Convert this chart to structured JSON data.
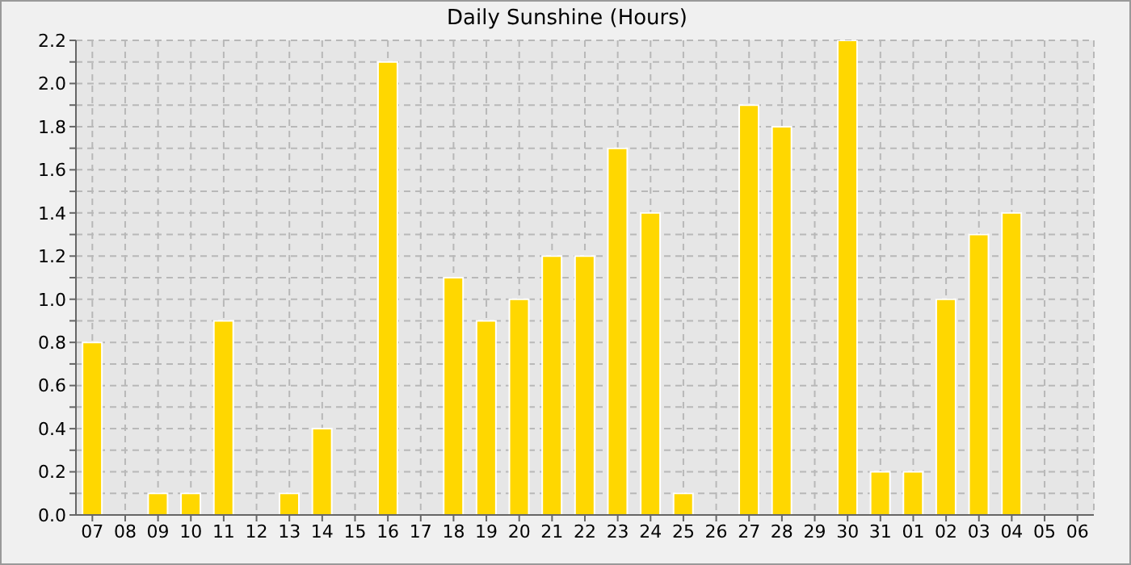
{
  "chart_data": {
    "type": "bar",
    "title": "Daily Sunshine (Hours)",
    "categories": [
      "07",
      "08",
      "09",
      "10",
      "11",
      "12",
      "13",
      "14",
      "15",
      "16",
      "17",
      "18",
      "19",
      "20",
      "21",
      "22",
      "23",
      "24",
      "25",
      "26",
      "27",
      "28",
      "29",
      "30",
      "31",
      "01",
      "02",
      "03",
      "04",
      "05",
      "06"
    ],
    "values": [
      0.8,
      0,
      0.1,
      0.1,
      0.9,
      0,
      0.1,
      0.4,
      0,
      2.1,
      0,
      1.1,
      0.9,
      1.0,
      1.2,
      1.2,
      1.7,
      1.4,
      0.1,
      0,
      1.9,
      1.8,
      0,
      2.2,
      0.2,
      0.2,
      1.0,
      1.3,
      1.4,
      0,
      0
    ],
    "color": "#ffd700",
    "ylim": [
      0,
      2.2
    ],
    "yticks": [
      {
        "value": 0,
        "label": "0.0"
      },
      {
        "value": 0.1,
        "label": null
      },
      0.2,
      {
        "value": 0.3,
        "label": null
      },
      0.4,
      {
        "value": 0.5,
        "label": null
      },
      0.6,
      {
        "value": 0.7,
        "label": null
      },
      0.8,
      {
        "value": 0.9,
        "label": null
      },
      {
        "value": 1,
        "label": "1.0"
      },
      {
        "value": 1.1,
        "label": null
      },
      1.2,
      {
        "value": 1.3,
        "label": null
      },
      1.4,
      {
        "value": 1.5,
        "label": null
      },
      1.6,
      {
        "value": 1.7,
        "label": null
      },
      1.8,
      {
        "value": 1.9,
        "label": null
      },
      {
        "value": 2,
        "label": "2.0"
      },
      {
        "value": 2.1,
        "label": null
      },
      2.2
    ],
    "grid": true
  }
}
